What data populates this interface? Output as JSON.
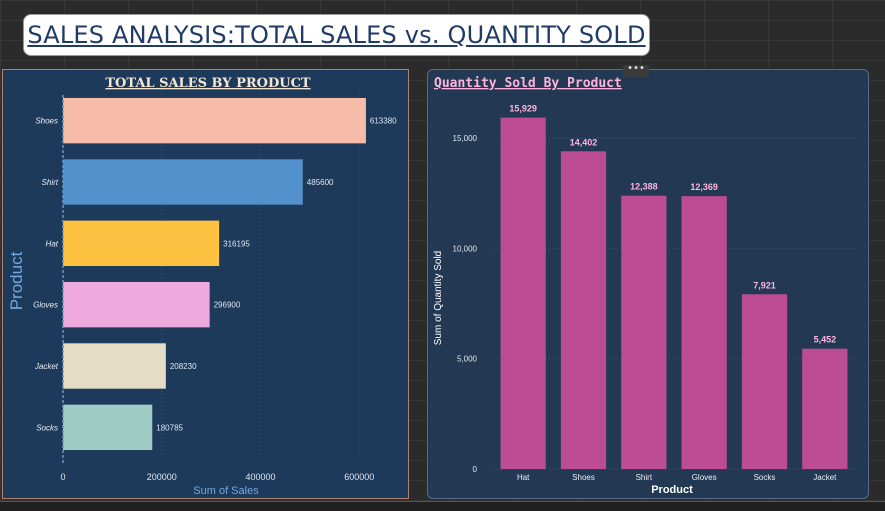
{
  "dashboard": {
    "title": "SALES ANALYSIS:TOTAL SALES vs. QUANTITY SOLD"
  },
  "colors": {
    "quantity_bar": "#bc4c93",
    "quantity_label": "#ffb3e0"
  },
  "chart_data": [
    {
      "type": "bar",
      "orientation": "horizontal",
      "title": "TOTAL SALES BY PRODUCT",
      "xlabel": "Sum of Sales",
      "ylabel": "Product",
      "categories": [
        "Shoes",
        "Shirt",
        "Hat",
        "Gloves",
        "Jacket",
        "Socks"
      ],
      "values": [
        613380,
        485600,
        316195,
        296900,
        208230,
        180785
      ],
      "value_labels": [
        "613380",
        "485600",
        "316195",
        "296900",
        "208230",
        "180785"
      ],
      "colors": [
        "#f7bca9",
        "#5291cc",
        "#fdc241",
        "#eeaadf",
        "#e4dcc4",
        "#9fcdc6"
      ],
      "xlim": [
        0,
        650000
      ],
      "xticks": [
        0,
        200000,
        400000,
        600000
      ],
      "xtick_labels": [
        "0",
        "200000",
        "400000",
        "600000"
      ],
      "grid": true
    },
    {
      "type": "bar",
      "orientation": "vertical",
      "title": "Quantity Sold By Product",
      "xlabel": "Product",
      "ylabel": "Sum of Quantity Sold",
      "categories": [
        "Hat",
        "Shoes",
        "Shirt",
        "Gloves",
        "Socks",
        "Jacket"
      ],
      "values": [
        15929,
        14402,
        12388,
        12369,
        7921,
        5452
      ],
      "value_labels": [
        "15,929",
        "14,402",
        "12,388",
        "12,369",
        "7,921",
        "5,452"
      ],
      "ylim": [
        0,
        16500
      ],
      "yticks": [
        0,
        5000,
        10000,
        15000
      ],
      "ytick_labels": [
        "0",
        "5,000",
        "10,000",
        "15,000"
      ],
      "grid": true
    }
  ]
}
